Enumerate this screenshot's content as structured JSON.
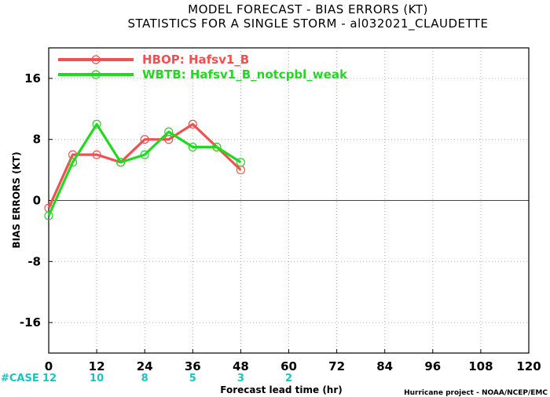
{
  "chart_data": {
    "type": "line",
    "title": "MODEL FORECAST - BIAS ERRORS (KT)",
    "subtitle": "STATISTICS FOR A SINGLE STORM - al032021_CLAUDETTE",
    "xlabel": "Forecast lead time (hr)",
    "ylabel": "BIAS ERRORS (KT)",
    "xlim": [
      0,
      120
    ],
    "ylim": [
      -20,
      20
    ],
    "xticks": [
      0,
      12,
      24,
      36,
      48,
      60,
      72,
      84,
      96,
      108,
      120
    ],
    "yticks": [
      -16,
      -8,
      0,
      8,
      16
    ],
    "grid": true,
    "legend_position": "top-left",
    "series": [
      {
        "name": "HBOP: Hafsv1_B",
        "color": "#f05050",
        "x": [
          0,
          6,
          12,
          18,
          24,
          30,
          36,
          42,
          48
        ],
        "y": [
          -1,
          6,
          6,
          5,
          8,
          8,
          10,
          7,
          4
        ]
      },
      {
        "name": "WBTB: Hafsv1_B_notcpbl_weak",
        "color": "#22d822",
        "x": [
          0,
          6,
          12,
          18,
          24,
          30,
          36,
          42,
          48
        ],
        "y": [
          -2,
          5,
          10,
          5,
          6,
          9,
          7,
          7,
          5
        ]
      }
    ],
    "zero_line": 0,
    "case_label": "#CASE",
    "case_color": "#19c3c3",
    "case_x": [
      0,
      12,
      24,
      36,
      48,
      60
    ],
    "cases": [
      "12",
      "10",
      "8",
      "5",
      "3",
      "2"
    ]
  },
  "credit": "Hurricane project - NOAA/NCEP/EMC"
}
